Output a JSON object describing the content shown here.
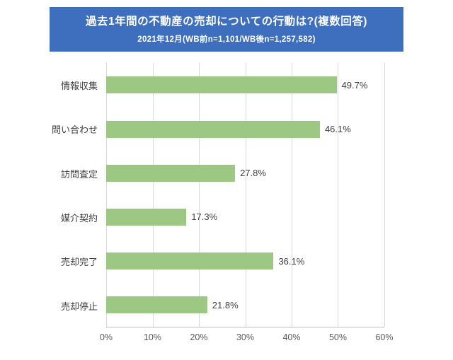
{
  "chart_data": {
    "type": "bar",
    "orientation": "horizontal",
    "title": "過去1年間の不動産の売却についての行動は?(複数回答)",
    "subtitle": "2021年12月(WB前n=1,101/WB後n=1,257,582)",
    "categories": [
      "情報収集",
      "問い合わせ",
      "訪問査定",
      "媒介契約",
      "売却完了",
      "売却停止"
    ],
    "values": [
      49.7,
      46.1,
      27.8,
      17.3,
      36.1,
      21.8
    ],
    "value_labels": [
      "49.7%",
      "46.1%",
      "27.8%",
      "17.3%",
      "36.1%",
      "21.8%"
    ],
    "xlabel": "",
    "ylabel": "",
    "xlim": [
      0,
      60
    ],
    "x_ticks": [
      "0%",
      "10%",
      "20%",
      "30%",
      "40%",
      "50%",
      "60%"
    ],
    "grid": true,
    "legend": false,
    "colors": {
      "bar": "#9CC884",
      "banner_bg": "#3E6FBE",
      "banner_text": "#FFFFFF",
      "grid_line": "#D9D9D9",
      "axis_text": "#595959",
      "label_text": "#404040"
    }
  }
}
